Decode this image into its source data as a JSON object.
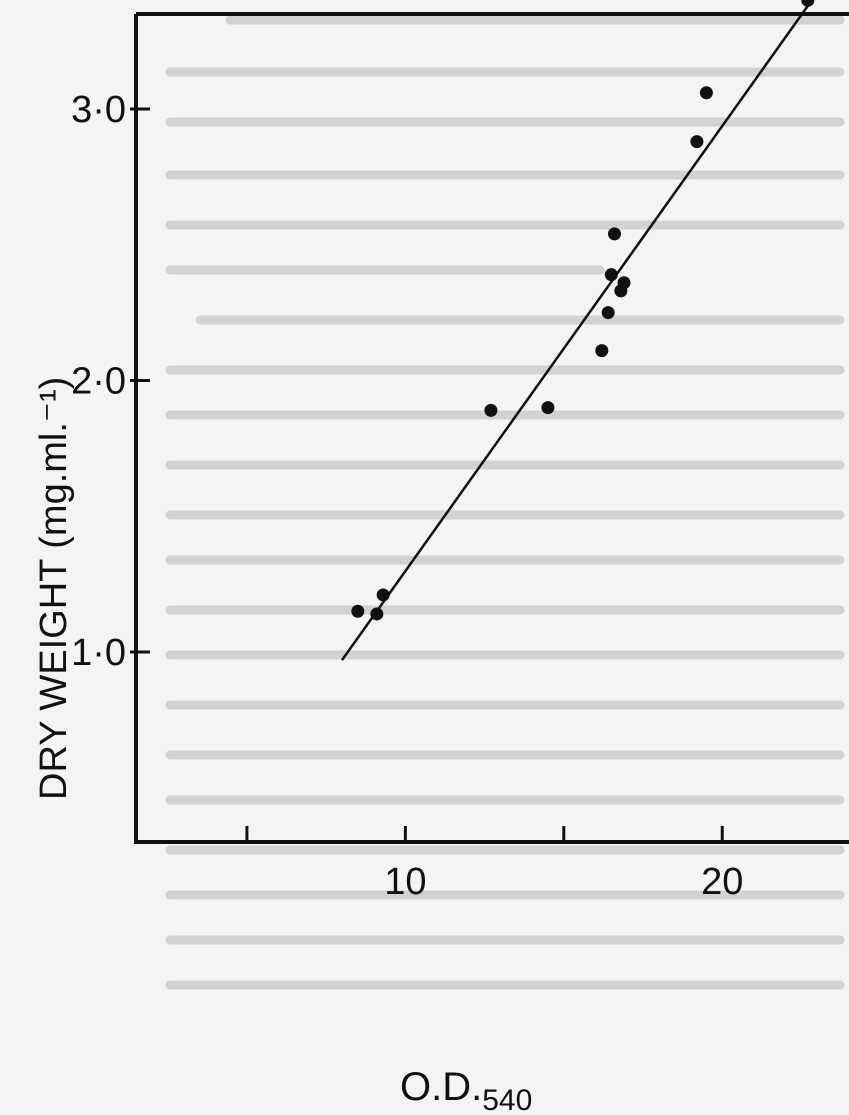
{
  "chart_data": {
    "type": "scatter",
    "title": "",
    "xlabel": "O.D.",
    "xlabel_subscript": "540",
    "ylabel": "DRY WEIGHT (mg.ml.⁻¹)",
    "xlim": [
      1.5,
      24
    ],
    "ylim": [
      0.3,
      3.35
    ],
    "x_ticks": [
      5,
      10,
      15,
      20
    ],
    "x_tick_labels": [
      "",
      "10",
      "",
      "20"
    ],
    "y_ticks": [
      1.0,
      2.0,
      3.0
    ],
    "y_tick_labels": [
      "1·0",
      "2·0",
      "3·0"
    ],
    "grid": false,
    "legend": "none",
    "series": [
      {
        "points": [
          {
            "x": 8.5,
            "y": 1.15
          },
          {
            "x": 9.1,
            "y": 1.14
          },
          {
            "x": 9.3,
            "y": 1.21
          },
          {
            "x": 12.7,
            "y": 1.89
          },
          {
            "x": 14.5,
            "y": 1.9
          },
          {
            "x": 16.2,
            "y": 2.11
          },
          {
            "x": 16.4,
            "y": 2.25
          },
          {
            "x": 16.5,
            "y": 2.39
          },
          {
            "x": 16.6,
            "y": 2.54
          },
          {
            "x": 16.8,
            "y": 2.33
          },
          {
            "x": 16.9,
            "y": 2.36
          },
          {
            "x": 19.2,
            "y": 2.88
          },
          {
            "x": 19.5,
            "y": 3.06
          },
          {
            "x": 22.7,
            "y": 3.4
          }
        ]
      }
    ],
    "fit_line": {
      "x": [
        8.0,
        22.7
      ],
      "y": [
        0.97,
        3.38
      ]
    }
  }
}
